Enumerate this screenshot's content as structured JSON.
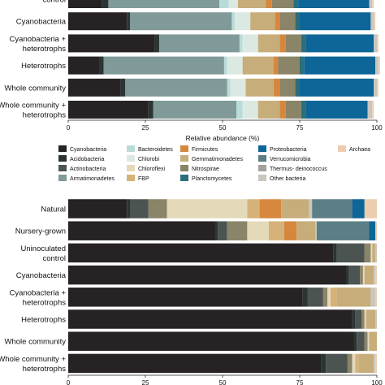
{
  "categories": [
    {
      "key": "cyanobacteria",
      "label": "Cyanobacteria",
      "color": "#272324"
    },
    {
      "key": "acidobacteria",
      "label": "Acidobacteria",
      "color": "#2b3634"
    },
    {
      "key": "actinobacteria",
      "label": "Actinobacteria",
      "color": "#4b5451"
    },
    {
      "key": "armatimonadetes",
      "label": "Armatimonadetes",
      "color": "#7f9a98"
    },
    {
      "key": "bacteroidetes",
      "label": "Bacteroidetes",
      "color": "#b8dcd7"
    },
    {
      "key": "chlorobi",
      "label": "Chlorobi",
      "color": "#dce9e2"
    },
    {
      "key": "chloroflexi",
      "label": "Chloroflexi",
      "color": "#e4d9b9"
    },
    {
      "key": "fbp",
      "label": "FBP",
      "color": "#d6b27a"
    },
    {
      "key": "firmicutes",
      "label": "Firmicutes",
      "color": "#d5883d"
    },
    {
      "key": "gemmatimonadetes",
      "label": "Gemmatimonadetes",
      "color": "#c7ad79"
    },
    {
      "key": "nitrospirae",
      "label": "Nitrospirae",
      "color": "#8a8468"
    },
    {
      "key": "planctomycetes",
      "label": "Planctomycetes",
      "color": "#2c6e7b"
    },
    {
      "key": "proteobacteria",
      "label": "Proteobacteria",
      "color": "#0e6597"
    },
    {
      "key": "verrucomicrobia",
      "label": "Verrucomicrobia",
      "color": "#5c7f86"
    },
    {
      "key": "thermus",
      "label": "Thermus- deinococcus",
      "color": "#a3a19b"
    },
    {
      "key": "other",
      "label": "Other bacteria",
      "color": "#c9c6c0"
    },
    {
      "key": "archaea",
      "label": "Archaea",
      "color": "#eccdb0"
    }
  ],
  "chart_data": [
    {
      "type": "bar",
      "orientation": "horizontal",
      "stacked": true,
      "xlabel": "Relative abundance (%)",
      "xlim": [
        0,
        100
      ],
      "xticks": [
        "0",
        "25",
        "50",
        "75",
        "100"
      ],
      "grid": false,
      "categories": [
        {
          "lines": [
            "control"
          ]
        },
        {
          "lines": [
            "Cyanobacteria"
          ]
        },
        {
          "lines": [
            "Cyanobacteria +",
            "heterotrophs"
          ]
        },
        {
          "lines": [
            "Heterotrophs"
          ]
        },
        {
          "lines": [
            "Whole community"
          ]
        },
        {
          "lines": [
            "Whole community +",
            "heterotrophs"
          ]
        }
      ],
      "series": [
        {
          "key": "cyanobacteria",
          "values": [
            11,
            19,
            28,
            10,
            17,
            26
          ]
        },
        {
          "key": "acidobacteria",
          "values": [
            2,
            1,
            1.5,
            1.5,
            1.5,
            1.5
          ]
        },
        {
          "key": "armatimonadetes",
          "values": [
            36,
            33,
            26,
            39,
            33,
            27
          ]
        },
        {
          "key": "bacteroidetes",
          "values": [
            3,
            1,
            1,
            1,
            1,
            2
          ]
        },
        {
          "key": "chlorobi",
          "values": [
            3,
            5,
            5,
            5,
            5,
            5
          ]
        },
        {
          "key": "gemmatimonadetes",
          "values": [
            9,
            8,
            7,
            10,
            9,
            7
          ]
        },
        {
          "key": "firmicutes",
          "values": [
            2,
            1.5,
            2,
            1.5,
            2,
            2
          ]
        },
        {
          "key": "nitrospirae",
          "values": [
            7,
            5,
            5,
            7,
            5,
            5
          ]
        },
        {
          "key": "planctomycetes",
          "values": [
            1.5,
            1.5,
            1.5,
            1.5,
            1.5,
            1.5
          ]
        },
        {
          "key": "proteobacteria",
          "values": [
            23,
            23,
            22,
            23,
            24,
            20
          ]
        },
        {
          "key": "other",
          "values": [
            1,
            1,
            1,
            1,
            1,
            1.5
          ]
        },
        {
          "key": "archaea",
          "values": [
            0.5,
            0.5,
            0.5,
            0.5,
            0.5,
            0.5
          ]
        }
      ]
    },
    {
      "type": "bar",
      "orientation": "horizontal",
      "stacked": true,
      "xlim": [
        0,
        100
      ],
      "xticks": [
        "0",
        "25",
        "50",
        "75",
        "100"
      ],
      "grid": false,
      "categories": [
        {
          "lines": [
            "Natural"
          ]
        },
        {
          "lines": [
            "Nursery-grown"
          ]
        },
        {
          "lines": [
            "Uninoculated",
            "control"
          ]
        },
        {
          "lines": [
            "Cyanobacteria"
          ]
        },
        {
          "lines": [
            "Cyanobacteria +",
            "heterotrophs"
          ]
        },
        {
          "lines": [
            "Heterotrophs"
          ]
        },
        {
          "lines": [
            "Whole community"
          ]
        },
        {
          "lines": [
            "Whole community +",
            "heterotrophs"
          ]
        }
      ],
      "series": [
        {
          "key": "cyanobacteria",
          "values": [
            19,
            47.5,
            86,
            90,
            76,
            92,
            92.5,
            82
          ]
        },
        {
          "key": "acidobacteria",
          "values": [
            1,
            1,
            1,
            1,
            1.5,
            1,
            1,
            1.5
          ]
        },
        {
          "key": "actinobacteria",
          "values": [
            6,
            3,
            9,
            3.5,
            5,
            2,
            2.5,
            7
          ]
        },
        {
          "key": "nitrospirae",
          "values": [
            6,
            6.5,
            2,
            1,
            1.5,
            1,
            1,
            1.5
          ]
        },
        {
          "key": "chloroflexi",
          "values": [
            26,
            7,
            0.5,
            0.5,
            1,
            0.5,
            0.5,
            1
          ]
        },
        {
          "key": "fbp",
          "values": [
            4,
            5,
            0,
            0,
            2,
            0,
            0,
            1
          ]
        },
        {
          "key": "firmicutes",
          "values": [
            7,
            4,
            0,
            0,
            0,
            0,
            0,
            0
          ]
        },
        {
          "key": "gemmatimonadetes",
          "values": [
            9,
            6,
            1,
            3,
            11,
            3,
            2.5,
            5
          ]
        },
        {
          "key": "other",
          "values": [
            1,
            0.5,
            0.5,
            0.5,
            1.5,
            0.5,
            0,
            0.5
          ]
        },
        {
          "key": "verrucomicrobia",
          "values": [
            13,
            17,
            0,
            0,
            0,
            0,
            0,
            0
          ]
        },
        {
          "key": "proteobacteria",
          "values": [
            4,
            2,
            0,
            0,
            0,
            0,
            0,
            0
          ]
        },
        {
          "key": "archaea",
          "values": [
            4,
            0.5,
            0,
            0.5,
            0.5,
            0,
            0,
            0.5
          ]
        }
      ]
    }
  ]
}
